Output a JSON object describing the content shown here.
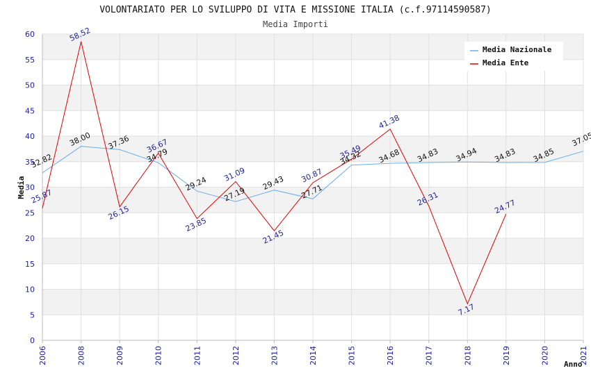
{
  "chart_data": {
    "type": "line",
    "title": "VOLONTARIATO PER LO SVILUPPO DI VITA E MISSIONE ITALIA (c.f.97114590587)",
    "subtitle": "Media Importi",
    "xlabel": "Anno",
    "ylabel": "Media",
    "ylim": [
      0,
      60
    ],
    "yticks": [
      0,
      5,
      10,
      15,
      20,
      25,
      30,
      35,
      40,
      45,
      50,
      55,
      60
    ],
    "categories": [
      "2006",
      "2008",
      "2009",
      "2010",
      "2011",
      "2012",
      "2013",
      "2014",
      "2015",
      "2016",
      "2017",
      "2018",
      "2019",
      "2020",
      "2021"
    ],
    "series": [
      {
        "name": "Media Nazionale",
        "color": "#6aaee8",
        "values": [
          32.82,
          38.0,
          37.36,
          34.79,
          29.24,
          27.19,
          29.43,
          27.71,
          34.32,
          34.68,
          34.83,
          34.94,
          34.83,
          34.85,
          37.05
        ],
        "labels": [
          "32.82",
          "38.00",
          "37.36",
          "34.79",
          "29.24",
          "27.19",
          "29.43",
          "27.71",
          "34.32",
          "34.68",
          "34.83",
          "34.94",
          "34.83",
          "34.85",
          "37.05"
        ]
      },
      {
        "name": "Media Ente",
        "color": "#e00000",
        "values": [
          25.87,
          58.52,
          26.15,
          36.67,
          23.85,
          31.09,
          21.45,
          30.87,
          35.49,
          41.38,
          26.31,
          7.17,
          24.77,
          null,
          null
        ],
        "labels": [
          "25.87",
          "58.52",
          "26.15",
          "36.67",
          "23.85",
          "31.09",
          "21.45",
          "30.87",
          "35.49",
          "41.38",
          "26.31",
          "7.17",
          "24.77",
          null,
          null
        ]
      }
    ],
    "legend": "top-right",
    "grid": true
  }
}
